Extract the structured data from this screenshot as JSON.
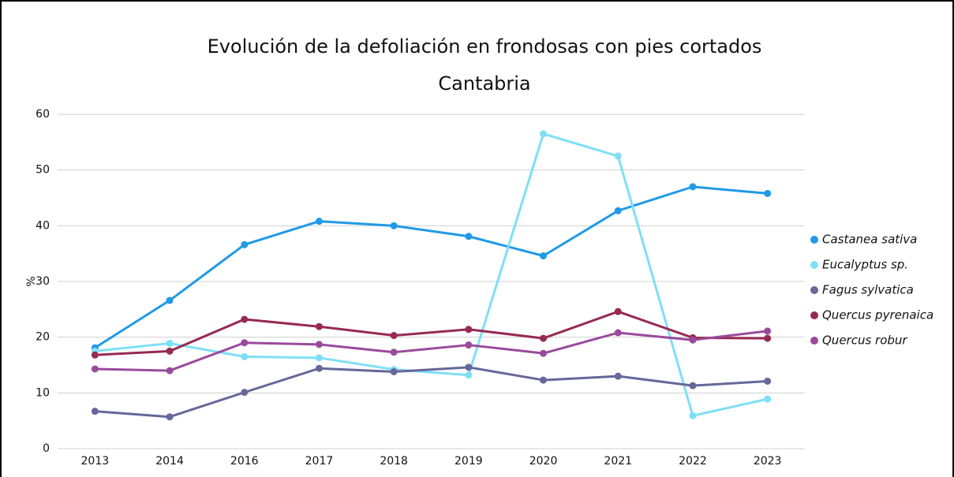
{
  "chart_data": {
    "type": "line",
    "title": "Evolución de la defoliación en frondosas con pies cortados",
    "subtitle": "Cantabria",
    "y_label": "%",
    "categories": [
      "2013",
      "2014",
      "2016",
      "2017",
      "2018",
      "2019",
      "2020",
      "2021",
      "2022",
      "2023"
    ],
    "series": [
      {
        "name": "Castanea sativa",
        "color": "#1f9ae6",
        "values": [
          18.1,
          26.6,
          36.6,
          40.8,
          40.0,
          38.1,
          34.6,
          42.7,
          47.0,
          45.8
        ]
      },
      {
        "name": "Eucalyptus sp.",
        "color": "#7fdff7",
        "values": [
          17.5,
          18.9,
          16.5,
          16.3,
          14.2,
          13.2,
          56.5,
          52.5,
          5.9,
          8.9
        ]
      },
      {
        "name": "Fagus sylvatica",
        "color": "#66679a",
        "values": [
          6.7,
          5.7,
          10.1,
          14.4,
          13.8,
          14.6,
          12.3,
          13.0,
          11.3,
          12.1
        ]
      },
      {
        "name": "Quercus pyrenaica",
        "color": "#962a52",
        "values": [
          16.8,
          17.5,
          23.2,
          21.9,
          20.3,
          21.4,
          19.8,
          24.6,
          19.9,
          19.8
        ]
      },
      {
        "name": "Quercus robur",
        "color": "#9a4a9c",
        "values": [
          14.3,
          14.0,
          19.0,
          18.7,
          17.3,
          18.6,
          17.1,
          20.8,
          19.5,
          21.1
        ]
      }
    ],
    "ylim": [
      0,
      60
    ],
    "yticks": [
      0,
      10,
      20,
      30,
      40,
      50,
      60
    ],
    "grid": true,
    "legend": "right"
  }
}
